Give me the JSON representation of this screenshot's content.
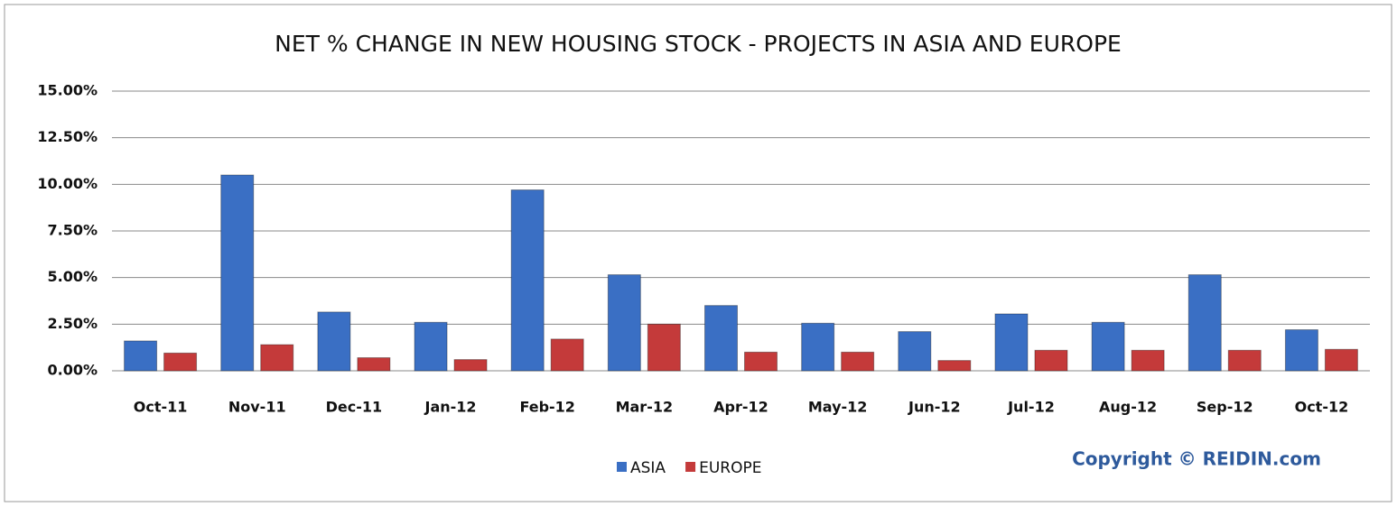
{
  "chart_data": {
    "type": "bar",
    "title": "NET % CHANGE IN NEW HOUSING STOCK - PROJECTS IN ASIA AND EUROPE",
    "categories": [
      "Oct-11",
      "Nov-11",
      "Dec-11",
      "Jan-12",
      "Feb-12",
      "Mar-12",
      "Apr-12",
      "May-12",
      "Jun-12",
      "Jul-12",
      "Aug-12",
      "Sep-12",
      "Oct-12"
    ],
    "series": [
      {
        "name": "ASIA",
        "color": "#3a6fc4",
        "values": [
          1.6,
          10.5,
          3.15,
          2.6,
          9.7,
          5.15,
          3.5,
          2.55,
          2.1,
          3.05,
          2.6,
          5.15,
          2.2
        ]
      },
      {
        "name": "EUROPE",
        "color": "#c43a3a",
        "values": [
          0.95,
          1.4,
          0.7,
          0.6,
          1.7,
          2.5,
          1.0,
          1.0,
          0.55,
          1.1,
          1.1,
          1.1,
          1.15
        ]
      }
    ],
    "ylim": [
      0,
      15
    ],
    "yticks": [
      {
        "value": 0,
        "label": "0.00%"
      },
      {
        "value": 2.5,
        "label": "2.50%"
      },
      {
        "value": 5,
        "label": "5.00%"
      },
      {
        "value": 7.5,
        "label": "7.50%"
      },
      {
        "value": 10,
        "label": "10.00%"
      },
      {
        "value": 12.5,
        "label": "12.50%"
      },
      {
        "value": 15,
        "label": "15.00%"
      }
    ],
    "grid": true,
    "legend": "bottom",
    "annotation": "Copyright © REIDIN.com"
  }
}
